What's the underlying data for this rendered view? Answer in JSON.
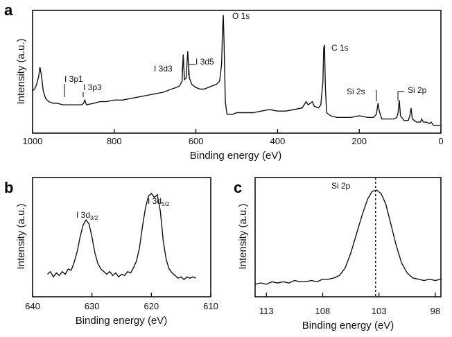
{
  "chart_data": [
    {
      "panel": "a",
      "type": "line",
      "xlabel": "Binding energy (eV)",
      "ylabel": "Intensity (a.u.)",
      "xlim": [
        1000,
        0
      ],
      "xticks": [
        1000,
        800,
        600,
        400,
        200,
        0
      ],
      "y_units": "arbitrary",
      "series": [
        {
          "points": [
            [
              1000,
              0.49
            ],
            [
              995,
              0.5
            ],
            [
              990,
              0.53
            ],
            [
              985,
              0.58
            ],
            [
              982,
              0.64
            ],
            [
              978,
              0.58
            ],
            [
              974,
              0.49
            ],
            [
              968,
              0.44
            ],
            [
              960,
              0.42
            ],
            [
              950,
              0.41
            ],
            [
              940,
              0.41
            ],
            [
              925,
              0.4
            ],
            [
              910,
              0.4
            ],
            [
              895,
              0.4
            ],
            [
              880,
              0.4
            ],
            [
              875,
              0.41
            ],
            [
              872,
              0.43
            ],
            [
              868,
              0.4
            ],
            [
              850,
              0.41
            ],
            [
              835,
              0.42
            ],
            [
              820,
              0.42
            ],
            [
              800,
              0.43
            ],
            [
              780,
              0.43
            ],
            [
              760,
              0.44
            ],
            [
              740,
              0.45
            ],
            [
              720,
              0.46
            ],
            [
              700,
              0.47
            ],
            [
              680,
              0.48
            ],
            [
              660,
              0.5
            ],
            [
              648,
              0.51
            ],
            [
              640,
              0.52
            ],
            [
              634,
              0.55
            ],
            [
              631,
              0.72
            ],
            [
              628,
              0.56
            ],
            [
              624,
              0.57
            ],
            [
              620,
              0.74
            ],
            [
              616,
              0.57
            ],
            [
              610,
              0.53
            ],
            [
              600,
              0.51
            ],
            [
              590,
              0.5
            ],
            [
              580,
              0.5
            ],
            [
              570,
              0.51
            ],
            [
              560,
              0.52
            ],
            [
              550,
              0.53
            ],
            [
              542,
              0.55
            ],
            [
              537,
              0.66
            ],
            [
              535,
              0.86
            ],
            [
              533,
              0.97
            ],
            [
              531,
              0.8
            ],
            [
              528,
              0.42
            ],
            [
              524,
              0.34
            ],
            [
              518,
              0.34
            ],
            [
              510,
              0.34
            ],
            [
              500,
              0.35
            ],
            [
              480,
              0.35
            ],
            [
              460,
              0.35
            ],
            [
              440,
              0.36
            ],
            [
              420,
              0.37
            ],
            [
              400,
              0.36
            ],
            [
              380,
              0.36
            ],
            [
              360,
              0.37
            ],
            [
              340,
              0.38
            ],
            [
              335,
              0.4
            ],
            [
              330,
              0.42
            ],
            [
              325,
              0.4
            ],
            [
              320,
              0.41
            ],
            [
              315,
              0.42
            ],
            [
              310,
              0.39
            ],
            [
              300,
              0.38
            ],
            [
              294,
              0.4
            ],
            [
              289,
              0.55
            ],
            [
              287,
              0.76
            ],
            [
              285,
              0.78
            ],
            [
              283,
              0.52
            ],
            [
              280,
              0.35
            ],
            [
              270,
              0.33
            ],
            [
              255,
              0.32
            ],
            [
              240,
              0.32
            ],
            [
              220,
              0.32
            ],
            [
              200,
              0.33
            ],
            [
              180,
              0.32
            ],
            [
              165,
              0.32
            ],
            [
              158,
              0.34
            ],
            [
              154,
              0.41
            ],
            [
              151,
              0.36
            ],
            [
              145,
              0.31
            ],
            [
              130,
              0.31
            ],
            [
              115,
              0.31
            ],
            [
              108,
              0.32
            ],
            [
              105,
              0.35
            ],
            [
              102,
              0.43
            ],
            [
              99,
              0.33
            ],
            [
              90,
              0.3
            ],
            [
              80,
              0.3
            ],
            [
              76,
              0.33
            ],
            [
              73,
              0.38
            ],
            [
              70,
              0.31
            ],
            [
              60,
              0.29
            ],
            [
              50,
              0.29
            ],
            [
              47,
              0.31
            ],
            [
              43,
              0.29
            ],
            [
              35,
              0.29
            ],
            [
              28,
              0.28
            ],
            [
              24,
              0.29
            ],
            [
              18,
              0.27
            ],
            [
              10,
              0.27
            ],
            [
              0,
              0.27
            ]
          ]
        }
      ],
      "annotations": [
        {
          "text": "I 3p1",
          "x": 930
        },
        {
          "text": "I 3p3",
          "x": 875
        },
        {
          "text": "I 3d3",
          "x": 631
        },
        {
          "text": "I 3d5",
          "x": 620
        },
        {
          "text": "O 1s",
          "x": 533
        },
        {
          "text": "C 1s",
          "x": 285
        },
        {
          "text": "Si 2s",
          "x": 154
        },
        {
          "text": "Si 2p",
          "x": 103
        }
      ]
    },
    {
      "panel": "b",
      "type": "line",
      "xlabel": "Binding energy (eV)",
      "ylabel": "Intensity (a.u.)",
      "xlim": [
        640,
        610
      ],
      "xticks": [
        640,
        630,
        620,
        610
      ],
      "y_units": "arbitrary",
      "series": [
        {
          "points": [
            [
              637.5,
              0.32
            ],
            [
              637,
              0.34
            ],
            [
              636.5,
              0.3
            ],
            [
              636,
              0.33
            ],
            [
              635.5,
              0.31
            ],
            [
              635,
              0.34
            ],
            [
              634.5,
              0.32
            ],
            [
              634,
              0.36
            ],
            [
              633.5,
              0.35
            ],
            [
              633,
              0.41
            ],
            [
              632.5,
              0.49
            ],
            [
              632,
              0.6
            ],
            [
              631.5,
              0.69
            ],
            [
              631,
              0.73
            ],
            [
              630.5,
              0.7
            ],
            [
              630,
              0.6
            ],
            [
              629.5,
              0.48
            ],
            [
              629,
              0.4
            ],
            [
              628.5,
              0.36
            ],
            [
              628,
              0.34
            ],
            [
              627.5,
              0.32
            ],
            [
              627,
              0.34
            ],
            [
              626.5,
              0.31
            ],
            [
              626,
              0.33
            ],
            [
              625.5,
              0.3
            ],
            [
              625,
              0.32
            ],
            [
              624.5,
              0.31
            ],
            [
              624,
              0.34
            ],
            [
              623.5,
              0.33
            ],
            [
              623,
              0.37
            ],
            [
              622.5,
              0.42
            ],
            [
              622,
              0.52
            ],
            [
              621.5,
              0.68
            ],
            [
              621,
              0.82
            ],
            [
              620.5,
              0.91
            ],
            [
              620,
              0.93
            ],
            [
              619.5,
              0.9
            ],
            [
              619,
              0.92
            ],
            [
              618.5,
              0.8
            ],
            [
              618,
              0.57
            ],
            [
              617.5,
              0.43
            ],
            [
              617,
              0.36
            ],
            [
              616.5,
              0.33
            ],
            [
              616,
              0.31
            ],
            [
              615.5,
              0.29
            ],
            [
              615,
              0.3
            ],
            [
              614.5,
              0.28
            ],
            [
              614,
              0.3
            ],
            [
              613.5,
              0.29
            ],
            [
              613,
              0.3
            ],
            [
              612.5,
              0.29
            ]
          ]
        }
      ],
      "annotations": [
        {
          "text": "I 3d",
          "sub": "3/2",
          "x": 631
        },
        {
          "text": "I 3d",
          "sub": "5/2",
          "x": 620
        }
      ]
    },
    {
      "panel": "c",
      "type": "line",
      "xlabel": "Binding energy (eV)",
      "ylabel": "Intensity (a.u.)",
      "xlim": [
        114,
        97.5
      ],
      "xticks": [
        113,
        108,
        103,
        98
      ],
      "y_units": "arbitrary",
      "series": [
        {
          "points": [
            [
              114,
              0.2
            ],
            [
              113.5,
              0.21
            ],
            [
              113,
              0.2
            ],
            [
              112.5,
              0.22
            ],
            [
              112,
              0.21
            ],
            [
              111.5,
              0.22
            ],
            [
              111,
              0.21
            ],
            [
              110.5,
              0.23
            ],
            [
              110,
              0.22
            ],
            [
              109.5,
              0.22
            ],
            [
              109,
              0.23
            ],
            [
              108.5,
              0.22
            ],
            [
              108,
              0.24
            ],
            [
              107.5,
              0.24
            ],
            [
              107,
              0.25
            ],
            [
              106.5,
              0.27
            ],
            [
              106,
              0.33
            ],
            [
              105.5,
              0.45
            ],
            [
              105,
              0.6
            ],
            [
              104.5,
              0.75
            ],
            [
              104,
              0.88
            ],
            [
              103.6,
              0.94
            ],
            [
              103.2,
              0.95
            ],
            [
              102.8,
              0.92
            ],
            [
              102.4,
              0.84
            ],
            [
              102,
              0.7
            ],
            [
              101.5,
              0.52
            ],
            [
              101,
              0.37
            ],
            [
              100.5,
              0.29
            ],
            [
              100,
              0.25
            ],
            [
              99.5,
              0.24
            ],
            [
              99,
              0.23
            ],
            [
              98.5,
              0.24
            ],
            [
              98,
              0.23
            ],
            [
              97.5,
              0.24
            ]
          ]
        }
      ],
      "annotations": [
        {
          "text": "Si 2p",
          "x": 103.3
        }
      ],
      "reference_line_x": 103.3
    }
  ],
  "panels": [
    {
      "letter": "a"
    },
    {
      "letter": "b"
    },
    {
      "letter": "c"
    }
  ]
}
